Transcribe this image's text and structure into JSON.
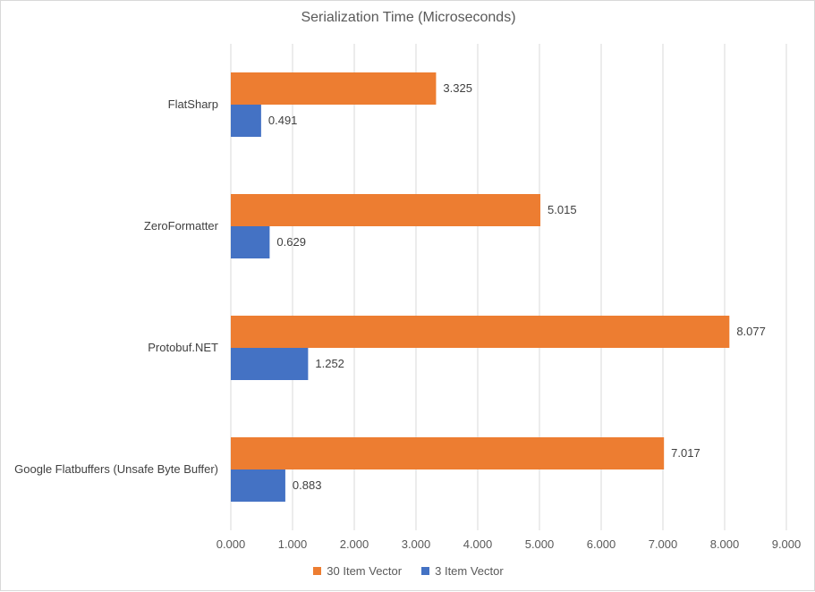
{
  "chart_data": {
    "type": "bar",
    "orientation": "horizontal",
    "title": "Serialization Time (Microseconds)",
    "xlabel": "",
    "ylabel": "",
    "xlim": [
      0,
      9
    ],
    "x_ticks": [
      "0.000",
      "1.000",
      "2.000",
      "3.000",
      "4.000",
      "5.000",
      "6.000",
      "7.000",
      "8.000",
      "9.000"
    ],
    "grid": "vertical",
    "legend_position": "bottom",
    "categories": [
      "FlatSharp",
      "ZeroFormatter",
      "Protobuf.NET",
      "Google Flatbuffers (Unsafe Byte Buffer)"
    ],
    "series": [
      {
        "name": "30 Item Vector",
        "color": "#ed7d31",
        "values": [
          3.325,
          5.015,
          8.077,
          7.017
        ],
        "labels": [
          "3.325",
          "5.015",
          "8.077",
          "7.017"
        ]
      },
      {
        "name": "3 Item Vector",
        "color": "#4472c4",
        "values": [
          0.491,
          0.629,
          1.252,
          0.883
        ],
        "labels": [
          "0.491",
          "0.629",
          "1.252",
          "0.883"
        ]
      }
    ]
  }
}
